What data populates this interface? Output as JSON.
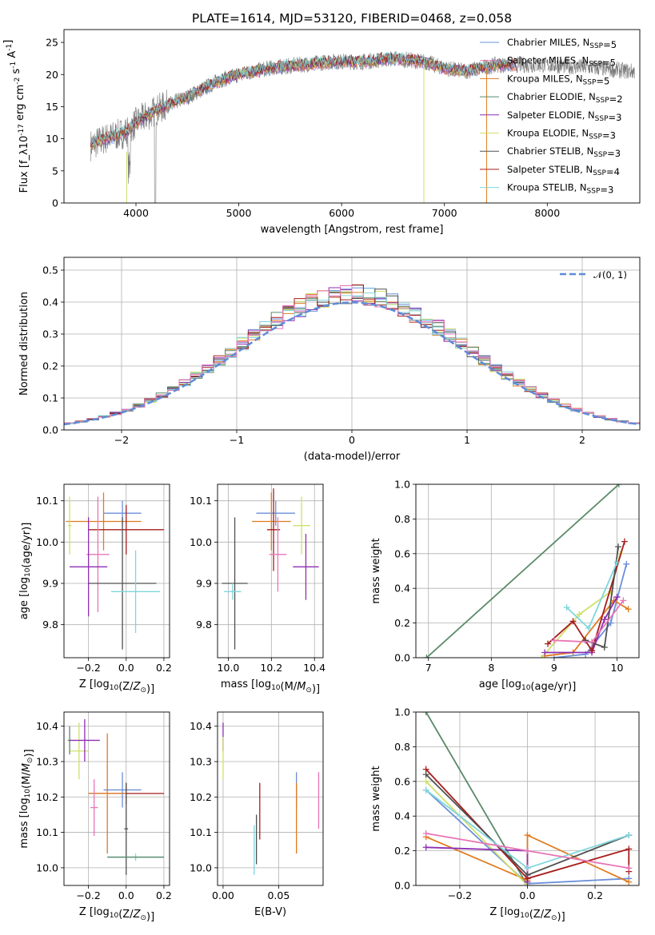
{
  "title": "PLATE=1614, MJD=53120, FIBERID=0468, z=0.058",
  "colors": [
    "#6a8fd8",
    "#8ecfdd",
    "#e07b1f",
    "#5a8a68",
    "#8e2fb2",
    "#cfe06a",
    "#505050",
    "#a81c1c",
    "#7fd6dc",
    "#e876b6"
  ],
  "chart_data": [
    {
      "type": "line",
      "name": "spectrum",
      "xlabel": "wavelength [Angstrom, rest frame]",
      "ylabel": "Flux [f_λ10^-17 erg cm^-2 s^-1 A^-1]",
      "xlim": [
        3300,
        8900
      ],
      "ylim": [
        0,
        27
      ],
      "xticks": [
        "4000",
        "5000",
        "6000",
        "7000",
        "8000"
      ],
      "yticks": [
        "0",
        "5",
        "10",
        "15",
        "20",
        "25"
      ],
      "legend_position": "right",
      "series": [
        {
          "name": "Chabrier MILES, N_SSP=5",
          "color": "#6a8fd8"
        },
        {
          "name": "Salpeter MILES, N_SSP=5",
          "color": "#e876b6"
        },
        {
          "name": "Kroupa MILES, N_SSP=5",
          "color": "#e07b1f"
        },
        {
          "name": "Chabrier ELODIE, N_SSP=2",
          "color": "#5a8a68"
        },
        {
          "name": "Salpeter ELODIE, N_SSP=3",
          "color": "#8e2fb2"
        },
        {
          "name": "Kroupa ELODIE, N_SSP=3",
          "color": "#cfe06a"
        },
        {
          "name": "Chabrier STELIB, N_SSP=3",
          "color": "#505050"
        },
        {
          "name": "Salpeter STELIB, N_SSP=4",
          "color": "#a81c1c"
        },
        {
          "name": "Kroupa STELIB, N_SSP=3",
          "color": "#7fd6dc"
        }
      ],
      "continuum": {
        "x": [
          3560,
          3700,
          3900,
          4000,
          4200,
          4500,
          4800,
          5000,
          5300,
          5600,
          5900,
          6200,
          6500,
          6800,
          7000,
          7200,
          7500,
          8000,
          8500,
          8800
        ],
        "y": [
          9,
          10,
          11,
          12.5,
          14.5,
          16.5,
          19,
          20,
          21,
          21.5,
          22,
          22,
          22.5,
          22,
          21,
          20.5,
          21.5,
          21.5,
          21,
          20.5
        ]
      }
    },
    {
      "type": "step",
      "name": "residuals",
      "xlabel": "(data-model)/error",
      "ylabel": "Normed distribution",
      "xlim": [
        -2.5,
        2.5
      ],
      "ylim": [
        0,
        0.54
      ],
      "xticks": [
        "−2",
        "−1",
        "0",
        "1",
        "2"
      ],
      "yticks": [
        "0.0",
        "0.1",
        "0.2",
        "0.3",
        "0.4",
        "0.5"
      ],
      "reference_label": "𝒩(0, 1)",
      "reference_color": "#5f8bd8",
      "bin_width": 0.1
    },
    {
      "type": "errorbar",
      "name": "age-vs-Z",
      "xlabel": "Z [log10(Z/Z⊙)]",
      "ylabel": "age  [log10(age/yr)]",
      "xlim": [
        -0.33,
        0.23
      ],
      "ylim": [
        9.72,
        10.14
      ],
      "xticks": [
        "−0.2",
        "0.0",
        "0.2"
      ],
      "yticks": [
        "9.8",
        "9.9",
        "10.0",
        "10.1"
      ],
      "points": [
        {
          "color": "#6a8fd8",
          "x": -0.02,
          "xerr": 0.1,
          "y": 10.07,
          "yerr": 0.03
        },
        {
          "color": "#e07b1f",
          "x": -0.12,
          "xerr": 0.2,
          "y": 10.05,
          "yerr": 0.07
        },
        {
          "color": "#cfe06a",
          "x": -0.3,
          "xerr": 0.01,
          "y": 10.04,
          "yerr": 0.07
        },
        {
          "color": "#a81c1c",
          "x": 0.0,
          "xerr": 0.2,
          "y": 10.03,
          "yerr": 0.06
        },
        {
          "color": "#e876b6",
          "x": -0.15,
          "xerr": 0.06,
          "y": 9.97,
          "yerr": 0.14
        },
        {
          "color": "#8e2fb2",
          "x": -0.2,
          "xerr": 0.1,
          "y": 9.94,
          "yerr": 0.12
        },
        {
          "color": "#505050",
          "x": -0.02,
          "xerr": 0.18,
          "y": 9.9,
          "yerr": 0.16
        },
        {
          "color": "#7fd6dc",
          "x": 0.05,
          "xerr": 0.13,
          "y": 9.88,
          "yerr": 0.1
        }
      ]
    },
    {
      "type": "errorbar",
      "name": "age-vs-mass",
      "xlabel": "mass [log10(M/M⊙)]",
      "ylabel": "",
      "xlim": [
        9.95,
        10.44
      ],
      "ylim": [
        9.72,
        10.14
      ],
      "xticks": [
        "10.0",
        "10.2",
        "10.4"
      ],
      "yticks": [
        "9.8",
        "9.9",
        "10.0",
        "10.1"
      ],
      "points": [
        {
          "color": "#6a8fd8",
          "x": 10.22,
          "xerr": 0.09,
          "y": 10.07,
          "yerr": 0.03
        },
        {
          "color": "#e07b1f",
          "x": 10.2,
          "xerr": 0.09,
          "y": 10.05,
          "yerr": 0.07
        },
        {
          "color": "#cfe06a",
          "x": 10.34,
          "xerr": 0.04,
          "y": 10.04,
          "yerr": 0.07
        },
        {
          "color": "#a81c1c",
          "x": 10.21,
          "xerr": 0.03,
          "y": 10.03,
          "yerr": 0.1
        },
        {
          "color": "#e876b6",
          "x": 10.23,
          "xerr": 0.04,
          "y": 9.97,
          "yerr": 0.09
        },
        {
          "color": "#8e2fb2",
          "x": 10.36,
          "xerr": 0.06,
          "y": 9.94,
          "yerr": 0.08
        },
        {
          "color": "#505050",
          "x": 10.03,
          "xerr": 0.06,
          "y": 9.9,
          "yerr": 0.16
        },
        {
          "color": "#7fd6dc",
          "x": 10.02,
          "xerr": 0.04,
          "y": 9.88,
          "yerr": 0.02
        }
      ]
    },
    {
      "type": "line",
      "name": "mass-weight-vs-age",
      "xlabel": "age  [log10(age/yr)]",
      "ylabel": "mass weight",
      "xlim": [
        6.8,
        10.35
      ],
      "ylim": [
        0,
        1
      ],
      "xticks": [
        "7",
        "8",
        "9",
        "10"
      ],
      "yticks": [
        "0.0",
        "0.2",
        "0.4",
        "0.6",
        "0.8",
        "1.0"
      ],
      "series": [
        {
          "color": "#5a8a68",
          "x": [
            6.97,
            10.03
          ],
          "y": [
            0.0,
            1.0
          ]
        },
        {
          "color": "#6a8fd8",
          "x": [
            9.0,
            9.5,
            9.9,
            10.15
          ],
          "y": [
            0.0,
            0.02,
            0.2,
            0.54
          ]
        },
        {
          "color": "#e07b1f",
          "x": [
            8.85,
            9.3,
            9.95,
            10.18
          ],
          "y": [
            0.01,
            0.03,
            0.33,
            0.28
          ]
        },
        {
          "color": "#cfe06a",
          "x": [
            8.8,
            9.4,
            9.9,
            10.05
          ],
          "y": [
            0.0,
            0.25,
            0.38,
            0.6
          ]
        },
        {
          "color": "#8e2fb2",
          "x": [
            8.85,
            9.6,
            9.8,
            10.0
          ],
          "y": [
            0.03,
            0.03,
            0.22,
            0.35
          ]
        },
        {
          "color": "#a81c1c",
          "x": [
            8.9,
            9.3,
            9.6,
            10.12
          ],
          "y": [
            0.08,
            0.21,
            0.04,
            0.67
          ]
        },
        {
          "color": "#505050",
          "x": [
            9.5,
            9.8,
            10.02
          ],
          "y": [
            0.1,
            0.06,
            0.64
          ]
        },
        {
          "color": "#7fd6dc",
          "x": [
            9.2,
            9.55,
            10.0
          ],
          "y": [
            0.29,
            0.17,
            0.55
          ]
        },
        {
          "color": "#e876b6",
          "x": [
            9.0,
            9.6,
            10.1
          ],
          "y": [
            0.1,
            0.09,
            0.33
          ]
        }
      ]
    },
    {
      "type": "errorbar",
      "name": "mass-vs-Z",
      "xlabel": "Z [log10(Z/Z⊙)]",
      "ylabel": "mass [log10(M/M⊙)]",
      "xlim": [
        -0.33,
        0.23
      ],
      "ylim": [
        9.95,
        10.44
      ],
      "xticks": [
        "−0.2",
        "0.0",
        "0.2"
      ],
      "yticks": [
        "10.0",
        "10.1",
        "10.2",
        "10.3",
        "10.4"
      ],
      "points": [
        {
          "color": "#cfe06a",
          "x": -0.25,
          "xerr": 0.05,
          "y": 10.33,
          "yerr": 0.08
        },
        {
          "color": "#5a8a68",
          "x": -0.3,
          "xerr": 0.01,
          "y": 10.36,
          "yerr": 0.04
        },
        {
          "color": "#8e2fb2",
          "x": -0.22,
          "xerr": 0.08,
          "y": 10.36,
          "yerr": 0.06
        },
        {
          "color": "#6a8fd8",
          "x": -0.02,
          "xerr": 0.1,
          "y": 10.22,
          "yerr": 0.05
        },
        {
          "color": "#a81c1c",
          "x": 0.0,
          "xerr": 0.2,
          "y": 10.21,
          "yerr": 0.03
        },
        {
          "color": "#e07b1f",
          "x": -0.1,
          "xerr": 0.1,
          "y": 10.21,
          "yerr": 0.17
        },
        {
          "color": "#e876b6",
          "x": -0.17,
          "xerr": 0.02,
          "y": 10.17,
          "yerr": 0.08
        },
        {
          "color": "#505050",
          "x": 0.0,
          "xerr": 0.01,
          "y": 10.11,
          "yerr": 0.13
        },
        {
          "color": "#7fd6dc",
          "x": 0.05,
          "xerr": 0.15,
          "y": 10.03,
          "yerr": 0.01
        },
        {
          "color": "#5a8a68",
          "x": 0.05,
          "xerr": 0.15,
          "y": 10.03,
          "yerr": 0.0
        }
      ]
    },
    {
      "type": "errorbar",
      "name": "mass-vs-EBV",
      "xlabel": "E(B-V)",
      "ylabel": "",
      "xlim": [
        -0.005,
        0.09
      ],
      "ylim": [
        9.95,
        10.44
      ],
      "xticks": [
        "0.00",
        "0.05"
      ],
      "yticks": [
        "10.0",
        "10.1",
        "10.2",
        "10.3",
        "10.4"
      ],
      "points": [
        {
          "color": "#8e2fb2",
          "x": 0.0,
          "xerr": 0,
          "y": 10.37,
          "yerr": 0.04
        },
        {
          "color": "#cfe06a",
          "x": 0.0,
          "xerr": 0,
          "y": 10.31,
          "yerr": 0.06
        },
        {
          "color": "#7fd6dc",
          "x": 0.028,
          "xerr": 0,
          "y": 10.05,
          "yerr": 0.07
        },
        {
          "color": "#505050",
          "x": 0.03,
          "xerr": 0,
          "y": 10.08,
          "yerr": 0.07
        },
        {
          "color": "#a81c1c",
          "x": 0.033,
          "xerr": 0,
          "y": 10.16,
          "yerr": 0.08
        },
        {
          "color": "#6a8fd8",
          "x": 0.066,
          "xerr": 0,
          "y": 10.22,
          "yerr": 0.05
        },
        {
          "color": "#e07b1f",
          "x": 0.066,
          "xerr": 0,
          "y": 10.14,
          "yerr": 0.1
        },
        {
          "color": "#e876b6",
          "x": 0.086,
          "xerr": 0,
          "y": 10.19,
          "yerr": 0.08
        }
      ]
    },
    {
      "type": "line",
      "name": "mass-weight-vs-Z",
      "xlabel": "Z [log10(Z/Z⊙)]",
      "ylabel": "mass weight",
      "xlim": [
        -0.33,
        0.33
      ],
      "ylim": [
        0,
        1
      ],
      "xticks": [
        "−0.2",
        "0.0",
        "0.2"
      ],
      "yticks": [
        "0.0",
        "0.2",
        "0.4",
        "0.6",
        "0.8",
        "1.0"
      ],
      "series": [
        {
          "color": "#5a8a68",
          "x": [
            -0.3,
            0.0
          ],
          "y": [
            1.0,
            0.0
          ]
        },
        {
          "color": "#6a8fd8",
          "x": [
            -0.3,
            0.0,
            0.3
          ],
          "y": [
            0.55,
            0.01,
            0.04
          ]
        },
        {
          "color": "#e07b1f",
          "x": [
            -0.3,
            0.0,
            0.0,
            0.3
          ],
          "y": [
            0.28,
            0.03,
            0.29,
            0.02
          ]
        },
        {
          "color": "#cfe06a",
          "x": [
            -0.3,
            0.0
          ],
          "y": [
            0.6,
            0.0
          ]
        },
        {
          "color": "#8e2fb2",
          "x": [
            -0.3,
            0.0,
            0.0
          ],
          "y": [
            0.22,
            0.2,
            0.02
          ]
        },
        {
          "color": "#a81c1c",
          "x": [
            -0.3,
            0.0,
            0.3,
            0.3
          ],
          "y": [
            0.67,
            0.04,
            0.21,
            0.08
          ]
        },
        {
          "color": "#505050",
          "x": [
            -0.3,
            0.0,
            0.3
          ],
          "y": [
            0.64,
            0.06,
            0.29
          ]
        },
        {
          "color": "#7fd6dc",
          "x": [
            -0.3,
            0.0,
            0.3
          ],
          "y": [
            0.55,
            0.1,
            0.29
          ]
        },
        {
          "color": "#e876b6",
          "x": [
            -0.3,
            0.0,
            0.3
          ],
          "y": [
            0.3,
            0.2,
            0.1
          ]
        }
      ]
    }
  ]
}
